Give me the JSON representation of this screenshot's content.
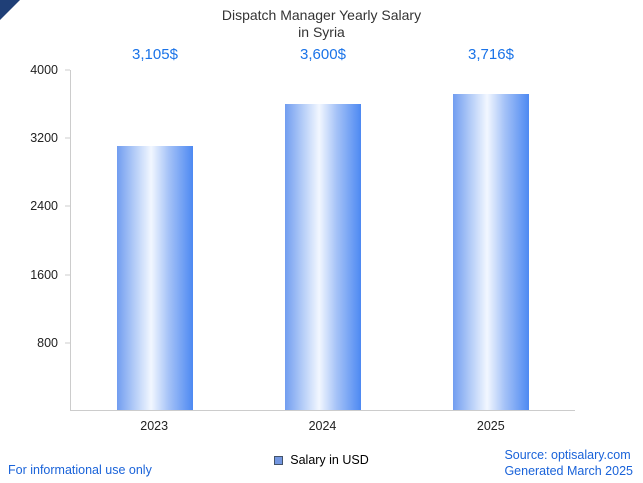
{
  "title_line1": "Dispatch Manager Yearly Salary",
  "title_line2": "in Syria",
  "chart_data": {
    "type": "bar",
    "title": "Dispatch Manager Yearly Salary in Syria",
    "categories": [
      "2023",
      "2024",
      "2025"
    ],
    "values": [
      3105,
      3600,
      3716
    ],
    "value_labels": [
      "3,105$",
      "3,600$",
      "3,716$"
    ],
    "series_name": "Salary in USD",
    "xlabel": "",
    "ylabel": "",
    "ylim": [
      0,
      4000
    ],
    "yticks": [
      800,
      1600,
      2400,
      3200,
      4000
    ],
    "grid": false,
    "legend_position": "bottom"
  },
  "legend": {
    "label": "Salary in USD"
  },
  "footer": {
    "left": "For informational use only",
    "source": "Source: optisalary.com",
    "generated": "Generated March 2025"
  },
  "colors": {
    "accent_text": "#1a73e8",
    "footer_text": "#1a63d9",
    "bar_left": "#719df0",
    "bar_mid": "#f2f7ff",
    "bar_right": "#4d89f2",
    "axis": "#cccccc",
    "title_text": "#333333"
  }
}
